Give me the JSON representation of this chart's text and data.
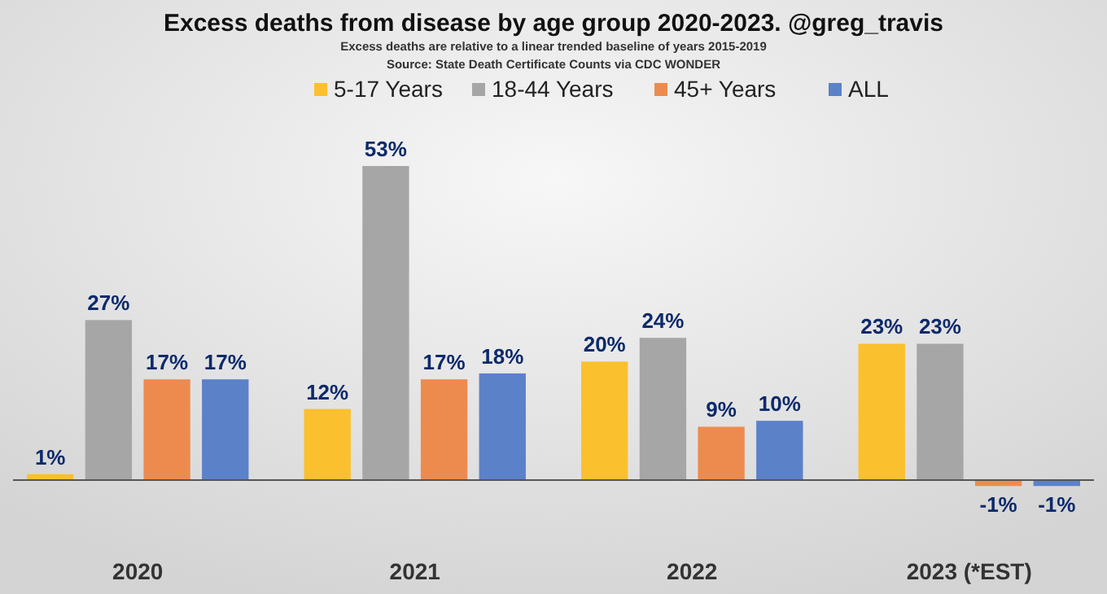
{
  "chart_data": {
    "type": "bar",
    "title": "Excess deaths from disease by age group 2020-2023.  @greg_travis",
    "subtitle": "Excess deaths are relative to a linear trended baseline of years 2015-2019",
    "annotations": [
      "Source: State Death Certificate Counts via CDC WONDER"
    ],
    "categories": [
      "2020",
      "2021",
      "2022",
      "2023 (*EST)"
    ],
    "legend": "top",
    "series": [
      {
        "name": "5-17 Years",
        "color": "#fbc02d",
        "values": [
          1,
          12,
          20,
          23
        ],
        "value_labels": [
          "1%",
          "12%",
          "20%",
          "23%"
        ]
      },
      {
        "name": "18-44 Years",
        "color": "#a6a6a6",
        "values": [
          27,
          53,
          24,
          23
        ],
        "value_labels": [
          "27%",
          "53%",
          "24%",
          "23%"
        ]
      },
      {
        "name": "45+ Years",
        "color": "#ed8b4f",
        "values": [
          17,
          17,
          9,
          -1
        ],
        "value_labels": [
          "17%",
          "17%",
          "9%",
          "-1%"
        ]
      },
      {
        "name": "ALL",
        "color": "#5b81c9",
        "values": [
          17,
          18,
          10,
          -1
        ],
        "value_labels": [
          "17%",
          "18%",
          "10%",
          "-1%"
        ]
      }
    ]
  }
}
